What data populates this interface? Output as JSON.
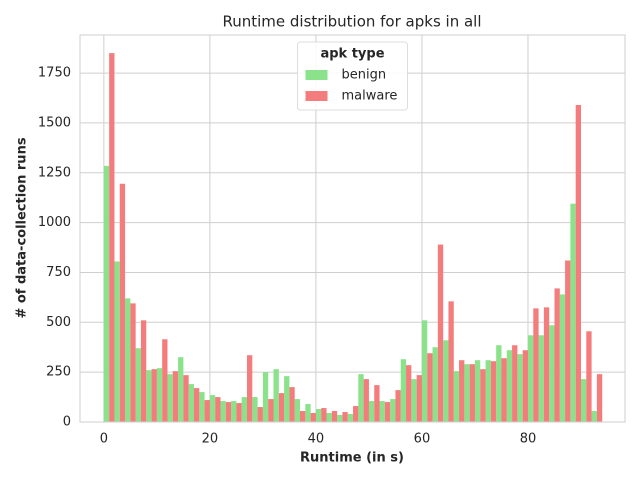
{
  "chart_data": {
    "type": "histogram",
    "title": "Runtime distribution for apks in all",
    "x_label": "Runtime (in s)",
    "y_label": "# of data-collection runs",
    "legend_title": "apk type",
    "legend_position": "upper center",
    "grid": true,
    "bins": [
      0,
      2,
      4,
      6,
      8,
      10,
      12,
      14,
      16,
      18,
      20,
      22,
      24,
      26,
      28,
      30,
      32,
      34,
      36,
      38,
      40,
      42,
      44,
      46,
      48,
      50,
      52,
      54,
      56,
      58,
      60,
      62,
      64,
      66,
      68,
      70,
      72,
      74,
      76,
      78,
      80,
      82,
      84,
      86,
      88,
      90,
      92,
      94
    ],
    "series": [
      {
        "name": "benign",
        "color": "#8ae28a",
        "values": [
          1285,
          805,
          620,
          370,
          260,
          270,
          240,
          325,
          190,
          150,
          135,
          105,
          105,
          125,
          125,
          250,
          265,
          230,
          115,
          90,
          65,
          45,
          35,
          40,
          240,
          105,
          105,
          115,
          315,
          215,
          510,
          375,
          410,
          255,
          290,
          310,
          310,
          385,
          360,
          340,
          435,
          435,
          485,
          640,
          1095,
          215,
          55
        ]
      },
      {
        "name": "malware",
        "color": "#f47c7c",
        "values": [
          1850,
          1195,
          595,
          510,
          265,
          415,
          255,
          235,
          170,
          110,
          125,
          100,
          95,
          335,
          75,
          115,
          145,
          175,
          55,
          45,
          70,
          55,
          50,
          80,
          215,
          185,
          100,
          160,
          285,
          235,
          345,
          890,
          605,
          310,
          290,
          265,
          305,
          320,
          385,
          360,
          570,
          575,
          670,
          810,
          1590,
          455,
          240
        ]
      }
    ],
    "xlim": [
      -4.5,
      98.3
    ],
    "ylim": [
      0,
      1941
    ],
    "xticks": [
      0,
      20,
      40,
      60,
      80
    ],
    "yticks": [
      0,
      250,
      500,
      750,
      1000,
      1250,
      1500,
      1750
    ]
  }
}
